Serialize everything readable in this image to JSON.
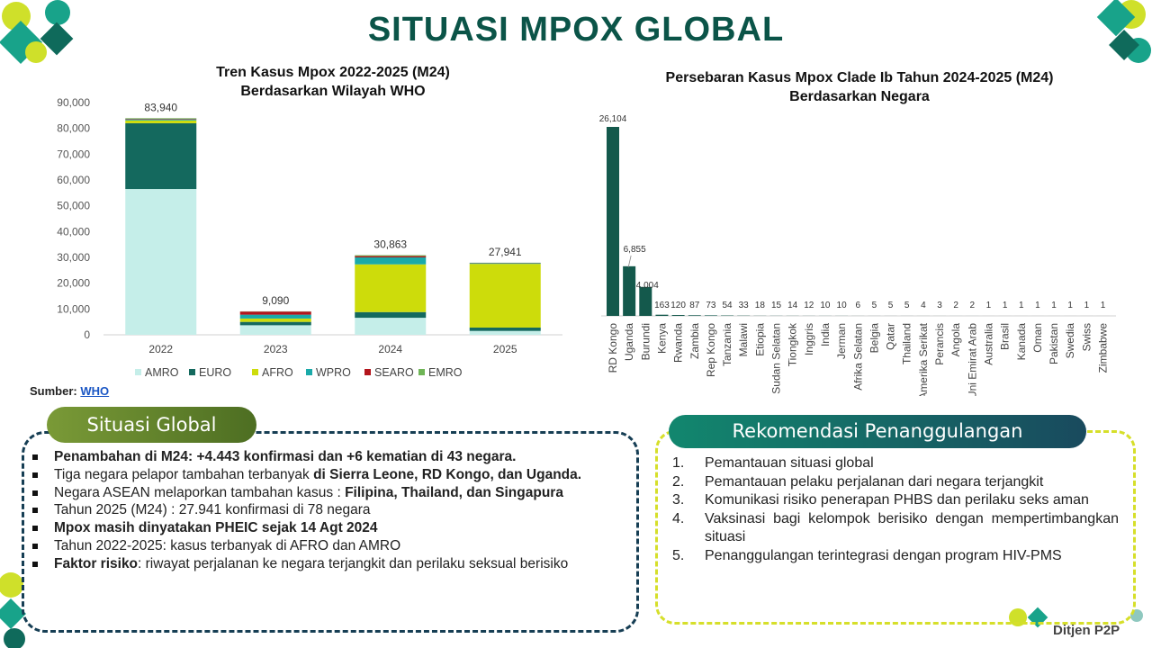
{
  "page": {
    "title": "SITUASI MPOX GLOBAL",
    "source_label": "Sumber:",
    "source_link": "WHO",
    "footer_logo_text": "Ditjen P2P"
  },
  "colors": {
    "AMRO": "#c5eee9",
    "EURO": "#14695e",
    "AFRO": "#cddc0b",
    "WPRO": "#1aaaa9",
    "SEARO": "#b3151c",
    "EMRO": "#6fb556",
    "country_bar": "#14594c",
    "title": "#0b5448"
  },
  "chart_data": [
    {
      "type": "bar",
      "stacked": true,
      "title": "Tren Kasus Mpox 2022-2025 (M24)",
      "subtitle": "Berdasarkan Wilayah WHO",
      "categories": [
        "2022",
        "2023",
        "2024",
        "2025"
      ],
      "totals": [
        83940,
        9090,
        30863,
        27941
      ],
      "total_labels": [
        "83,940",
        "9,090",
        "30,863",
        "27,941"
      ],
      "series": [
        {
          "name": "AMRO",
          "values": [
            56500,
            3700,
            6600,
            1500
          ]
        },
        {
          "name": "EURO",
          "values": [
            25500,
            1300,
            2200,
            1300
          ]
        },
        {
          "name": "AFRO",
          "values": [
            1100,
            1300,
            18500,
            24700
          ]
        },
        {
          "name": "WPRO",
          "values": [
            400,
            1500,
            2700,
            300
          ]
        },
        {
          "name": "SEARO",
          "values": [
            200,
            1200,
            500,
            100
          ]
        },
        {
          "name": "EMRO",
          "values": [
            240,
            90,
            363,
            41
          ]
        }
      ],
      "ylim": [
        0,
        90000
      ],
      "yticks": [
        0,
        10000,
        20000,
        30000,
        40000,
        50000,
        60000,
        70000,
        80000,
        90000
      ],
      "ytick_labels": [
        "0",
        "10,000",
        "20,000",
        "30,000",
        "40,000",
        "50,000",
        "60,000",
        "70,000",
        "80,000",
        "90,000"
      ],
      "legend_position": "bottom",
      "grid": false
    },
    {
      "type": "bar",
      "title": "Persebaran Kasus Mpox Clade Ib Tahun 2024-2025 (M24)",
      "subtitle": "Berdasarkan Negara",
      "categories": [
        "RD Kongo",
        "Uganda",
        "Burundi",
        "Kenya",
        "Rwanda",
        "Zambia",
        "Rep Kongo",
        "Tanzania",
        "Malawi",
        "Etiopia",
        "Sudan Selatan",
        "Tiongkok",
        "Inggris",
        "India",
        "Jerman",
        "Afrika Selatan",
        "Belgia",
        "Qatar",
        "Thailand",
        "Amerika Serikat",
        "Perancis",
        "Angola",
        "Uni Emirat Arab",
        "Australia",
        "Brasil",
        "Kanada",
        "Oman",
        "Pakistan",
        "Swedia",
        "Swiss",
        "Zimbabwe"
      ],
      "values": [
        26104,
        6855,
        4004,
        163,
        120,
        87,
        73,
        54,
        33,
        18,
        15,
        14,
        12,
        10,
        10,
        6,
        5,
        5,
        5,
        4,
        3,
        2,
        2,
        1,
        1,
        1,
        1,
        1,
        1,
        1,
        1
      ],
      "value_labels": [
        "26,104",
        "6,855",
        "4,004",
        "163",
        "120",
        "87",
        "73",
        "54",
        "33",
        "18",
        "15",
        "14",
        "12",
        "10",
        "10",
        "6",
        "5",
        "5",
        "5",
        "4",
        "3",
        "2",
        "2",
        "1",
        "1",
        "1",
        "1",
        "1",
        "1",
        "1",
        "1"
      ],
      "ylim": [
        0,
        26104
      ],
      "grid": false
    }
  ],
  "global": {
    "heading": "Situasi Global",
    "items": [
      {
        "parts": [
          {
            "t": "Penambahan di M24: +4.443 konfirmasi dan +6 kematian di 43 negara.",
            "b": true
          }
        ]
      },
      {
        "parts": [
          {
            "t": "Tiga negara pelapor tambahan terbanyak ",
            "b": false
          },
          {
            "t": "di Sierra Leone, RD Kongo, dan Uganda.",
            "b": true
          }
        ]
      },
      {
        "parts": [
          {
            "t": "Negara ASEAN melaporkan tambahan kasus : ",
            "b": false
          },
          {
            "t": "Filipina, Thailand, dan Singapura",
            "b": true
          }
        ]
      },
      {
        "parts": [
          {
            "t": "Tahun 2025 (M24) : 27.941 konfirmasi di 78 negara",
            "b": false
          }
        ]
      },
      {
        "parts": [
          {
            "t": "Mpox masih dinyatakan PHEIC sejak 14 Agt 2024",
            "b": true
          }
        ]
      },
      {
        "parts": [
          {
            "t": "Tahun 2022-2025: kasus terbanyak di AFRO dan AMRO",
            "b": false
          }
        ]
      },
      {
        "parts": [
          {
            "t": "Faktor risiko",
            "b": true
          },
          {
            "t": ": riwayat perjalanan ke negara terjangkit dan perilaku seksual berisiko",
            "b": false
          }
        ]
      }
    ]
  },
  "recommendation": {
    "heading": "Rekomendasi Penanggulangan",
    "items": [
      {
        "num": "1.",
        "text": "Pemantauan situasi global"
      },
      {
        "num": "2.",
        "text": "Pemantauan pelaku perjalanan dari negara terjangkit"
      },
      {
        "num": "3.",
        "text": "Komunikasi risiko penerapan PHBS dan perilaku seks aman"
      },
      {
        "num": "4.",
        "text": "Vaksinasi bagi kelompok berisiko dengan mempertimbangkan situasi"
      },
      {
        "num": "5.",
        "text": "Penanggulangan terintegrasi dengan program HIV-PMS"
      }
    ]
  }
}
